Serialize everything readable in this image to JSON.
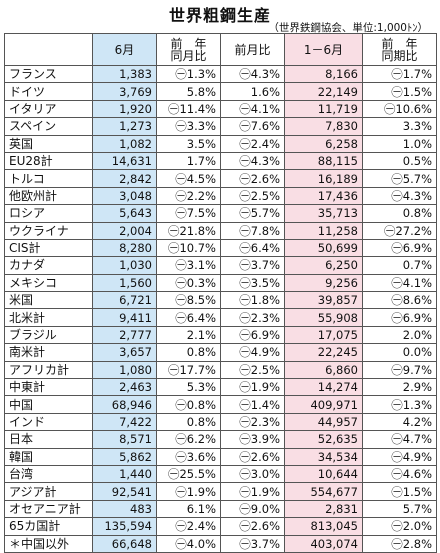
{
  "title": "世界粗鋼生産",
  "unit": "（世界鉄鋼協会、単位:1,000ﾄﾝ）",
  "headers": {
    "name": "",
    "month": "6月",
    "yoy_month_1": "前　年",
    "yoy_month_2": "同月比",
    "mom": "前月比",
    "ytd": "1－6月",
    "yoy_period_1": "前　年",
    "yoy_period_2": "同期比"
  },
  "rows": [
    {
      "name": "フランス",
      "month": "1,383",
      "yoy": "㊀1.3%",
      "mom": "㊀4.3%",
      "ytd": "8,166",
      "yoyp": "㊀1.7%"
    },
    {
      "name": "ドイツ",
      "month": "3,769",
      "yoy": "5.8%",
      "mom": "1.6%",
      "ytd": "22,149",
      "yoyp": "㊀1.5%"
    },
    {
      "name": "イタリア",
      "month": "1,920",
      "yoy": "㊀11.4%",
      "mom": "㊀4.1%",
      "ytd": "11,719",
      "yoyp": "㊀10.6%"
    },
    {
      "name": "スペイン",
      "month": "1,273",
      "yoy": "㊀3.3%",
      "mom": "㊀7.6%",
      "ytd": "7,830",
      "yoyp": "3.3%"
    },
    {
      "name": "英国",
      "month": "1,082",
      "yoy": "3.5%",
      "mom": "㊀2.4%",
      "ytd": "6,258",
      "yoyp": "1.0%"
    },
    {
      "name": "EU28計",
      "month": "14,631",
      "yoy": "1.7%",
      "mom": "㊀4.3%",
      "ytd": "88,115",
      "yoyp": "0.5%"
    },
    {
      "name": "トルコ",
      "month": "2,842",
      "yoy": "㊀4.5%",
      "mom": "㊀2.6%",
      "ytd": "16,189",
      "yoyp": "㊀5.7%"
    },
    {
      "name": "他欧州計",
      "month": "3,048",
      "yoy": "㊀2.2%",
      "mom": "㊀2.5%",
      "ytd": "17,436",
      "yoyp": "㊀4.3%"
    },
    {
      "name": "ロシア",
      "month": "5,643",
      "yoy": "㊀7.5%",
      "mom": "㊀5.7%",
      "ytd": "35,713",
      "yoyp": "0.8%"
    },
    {
      "name": "ウクライナ",
      "month": "2,004",
      "yoy": "㊀21.8%",
      "mom": "㊀7.8%",
      "ytd": "11,258",
      "yoyp": "㊀27.2%"
    },
    {
      "name": "CIS計",
      "month": "8,280",
      "yoy": "㊀10.7%",
      "mom": "㊀6.4%",
      "ytd": "50,699",
      "yoyp": "㊀6.9%"
    },
    {
      "name": "カナダ",
      "month": "1,030",
      "yoy": "㊀3.1%",
      "mom": "㊀3.7%",
      "ytd": "6,250",
      "yoyp": "0.7%"
    },
    {
      "name": "メキシコ",
      "month": "1,560",
      "yoy": "㊀0.3%",
      "mom": "㊀3.5%",
      "ytd": "9,256",
      "yoyp": "㊀4.1%"
    },
    {
      "name": "米国",
      "month": "6,721",
      "yoy": "㊀8.5%",
      "mom": "㊀1.8%",
      "ytd": "39,857",
      "yoyp": "㊀8.6%"
    },
    {
      "name": "北米計",
      "month": "9,411",
      "yoy": "㊀6.4%",
      "mom": "㊀2.3%",
      "ytd": "55,908",
      "yoyp": "㊀6.9%"
    },
    {
      "name": "ブラジル",
      "month": "2,777",
      "yoy": "2.1%",
      "mom": "㊀6.9%",
      "ytd": "17,075",
      "yoyp": "2.0%"
    },
    {
      "name": "南米計",
      "month": "3,657",
      "yoy": "0.8%",
      "mom": "㊀4.9%",
      "ytd": "22,245",
      "yoyp": "0.0%"
    },
    {
      "name": "アフリカ計",
      "month": "1,080",
      "yoy": "㊀17.7%",
      "mom": "㊀2.5%",
      "ytd": "6,860",
      "yoyp": "㊀9.7%"
    },
    {
      "name": "中東計",
      "month": "2,463",
      "yoy": "5.3%",
      "mom": "㊀1.9%",
      "ytd": "14,274",
      "yoyp": "2.9%"
    },
    {
      "name": "中国",
      "month": "68,946",
      "yoy": "㊀0.8%",
      "mom": "㊀1.4%",
      "ytd": "409,971",
      "yoyp": "㊀1.3%"
    },
    {
      "name": "インド",
      "month": "7,422",
      "yoy": "0.8%",
      "mom": "㊀2.3%",
      "ytd": "44,957",
      "yoyp": "4.2%"
    },
    {
      "name": "日本",
      "month": "8,571",
      "yoy": "㊀6.2%",
      "mom": "㊀3.9%",
      "ytd": "52,635",
      "yoyp": "㊀4.7%"
    },
    {
      "name": "韓国",
      "month": "5,862",
      "yoy": "㊀3.6%",
      "mom": "㊀2.6%",
      "ytd": "34,534",
      "yoyp": "㊀4.9%"
    },
    {
      "name": "台湾",
      "month": "1,440",
      "yoy": "㊀25.5%",
      "mom": "㊀3.0%",
      "ytd": "10,644",
      "yoyp": "㊀4.6%"
    },
    {
      "name": "アジア計",
      "month": "92,541",
      "yoy": "㊀1.9%",
      "mom": "㊀1.9%",
      "ytd": "554,677",
      "yoyp": "㊀1.5%"
    },
    {
      "name": "オセアニア計",
      "month": "483",
      "yoy": "6.1%",
      "mom": "㊀9.0%",
      "ytd": "2,831",
      "yoyp": "5.7%"
    },
    {
      "name": "65カ国計",
      "month": "135,594",
      "yoy": "㊀2.4%",
      "mom": "㊀2.6%",
      "ytd": "813,045",
      "yoyp": "㊀2.0%"
    },
    {
      "name": "＊中国以外",
      "month": "66,648",
      "yoy": "㊀4.0%",
      "mom": "㊀3.7%",
      "ytd": "403,074",
      "yoyp": "㊀2.8%"
    }
  ],
  "colors": {
    "month_column": "#cfe6f6",
    "ytd_column": "#f9dee4",
    "border": "#555555"
  }
}
